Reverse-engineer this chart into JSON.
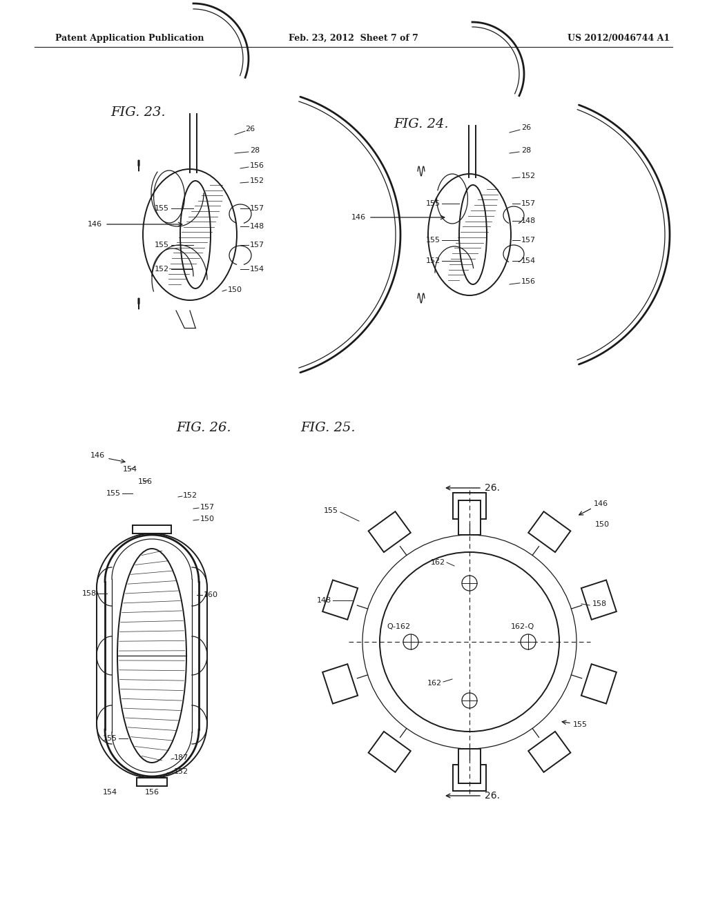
{
  "header_left": "Patent Application Publication",
  "header_mid": "Feb. 23, 2012  Sheet 7 of 7",
  "header_right": "US 2012/0046744 A1",
  "bg_color": "#ffffff",
  "line_color": "#1a1a1a",
  "fig23_label": "FIG. 23.",
  "fig24_label": "FIG. 24.",
  "fig25_label": "FIG. 25.",
  "fig26_label": "FIG. 26."
}
